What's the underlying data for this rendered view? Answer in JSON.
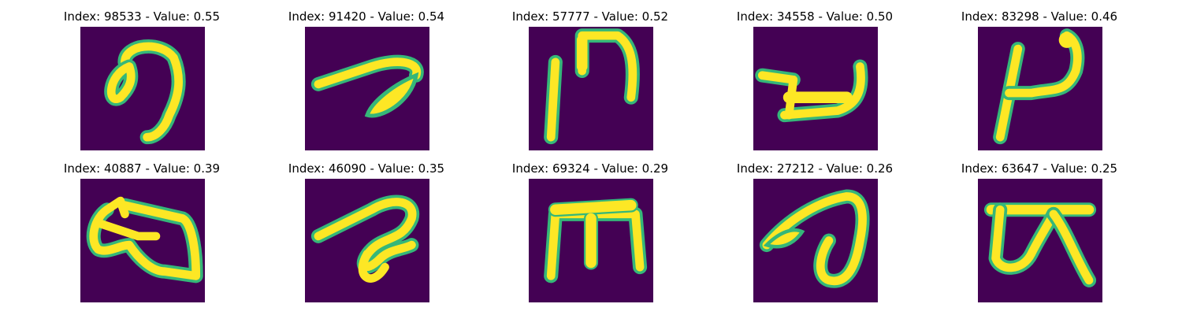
{
  "background": "#440154",
  "stroke": "#fde725",
  "edge": "#35b779",
  "panels": [
    {
      "title": "Index: 98533 - Value: 0.55",
      "glyph": "rounded loop with descending tail"
    },
    {
      "title": "Index: 91420 - Value: 0.54",
      "glyph": "diagonal stroke with filled leaf"
    },
    {
      "title": "Index: 57777 - Value: 0.52",
      "glyph": "vertical bar beside arch"
    },
    {
      "title": "Index: 34558 - Value: 0.50",
      "glyph": "hook with flat base"
    },
    {
      "title": "Index: 83298 - Value: 0.46",
      "glyph": "slanted stroke with curl"
    },
    {
      "title": "Index: 40887 - Value: 0.39",
      "glyph": "closed looped outline"
    },
    {
      "title": "Index: 46090 - Value: 0.35",
      "glyph": "diagonal stroke with small loops"
    },
    {
      "title": "Index: 69324 - Value: 0.29",
      "glyph": "three-legged arch"
    },
    {
      "title": "Index: 27212 - Value: 0.26",
      "glyph": "leaf with descending loop"
    },
    {
      "title": "Index: 63647 - Value: 0.25",
      "glyph": "bar over two legs"
    }
  ]
}
